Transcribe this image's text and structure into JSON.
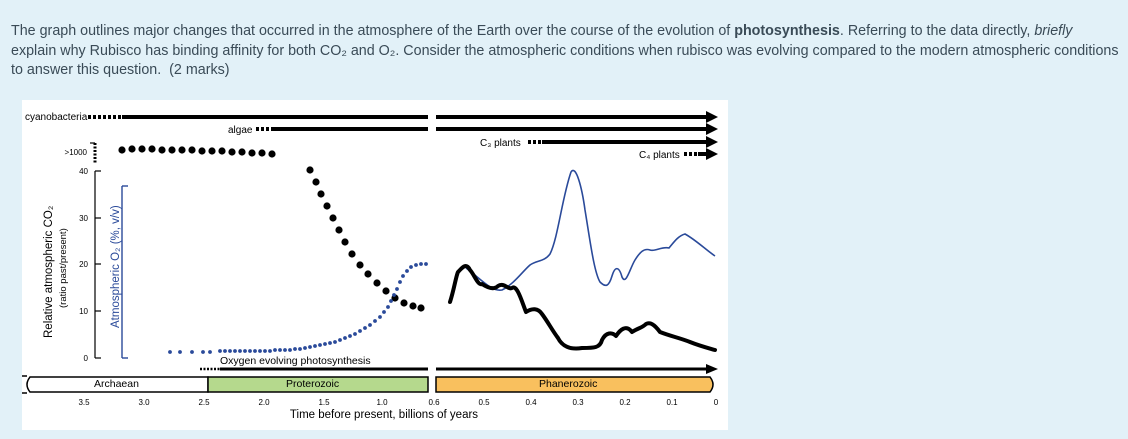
{
  "question": {
    "intro": "The graph outlines major changes that occurred in the atmosphere of the Earth over the course of the evolution of ",
    "keyword": "photosynthesis",
    "sentence2_start": ". Referring to the data directly, ",
    "emphasis": "briefly",
    "sentence2_end": " explain why Rubisco has binding affinity for both CO₂ and O₂. Consider the atmospheric conditions when rubisco was evolving compared to the modern atmospheric conditions to answer this question.",
    "marks": "(2 marks)"
  },
  "figure": {
    "labels": {
      "cyanobacteria": "cyanobacteria",
      "algae": "algae",
      "c3_plants": "C₃ plants",
      "c4_plants": "C₄ plants",
      "oxygen_evolving": "Oxygen evolving photosynthesis"
    },
    "eons": {
      "archaean": "Archaean",
      "proterozoic": "Proterozoic",
      "phanerozoic": "Phanerozoic"
    },
    "left_axis": {
      "title": "Relative atmospheric CO₂",
      "subtitle": "(ratio past/present)",
      "ticks": [
        ">1000",
        "40",
        "30",
        "20",
        "10",
        "0"
      ]
    },
    "o2_axis": {
      "title": "Atmospheric O₂ (%, v/v)"
    },
    "x_axis": {
      "title": "Time before present, billions of years",
      "ticks_left": [
        "3.5",
        "3.0",
        "2.5",
        "2.0",
        "1.5",
        "1.0",
        "0.6"
      ],
      "ticks_right": [
        "0.5",
        "0.4",
        "0.3",
        "0.2",
        "0.1",
        "0"
      ]
    }
  }
}
